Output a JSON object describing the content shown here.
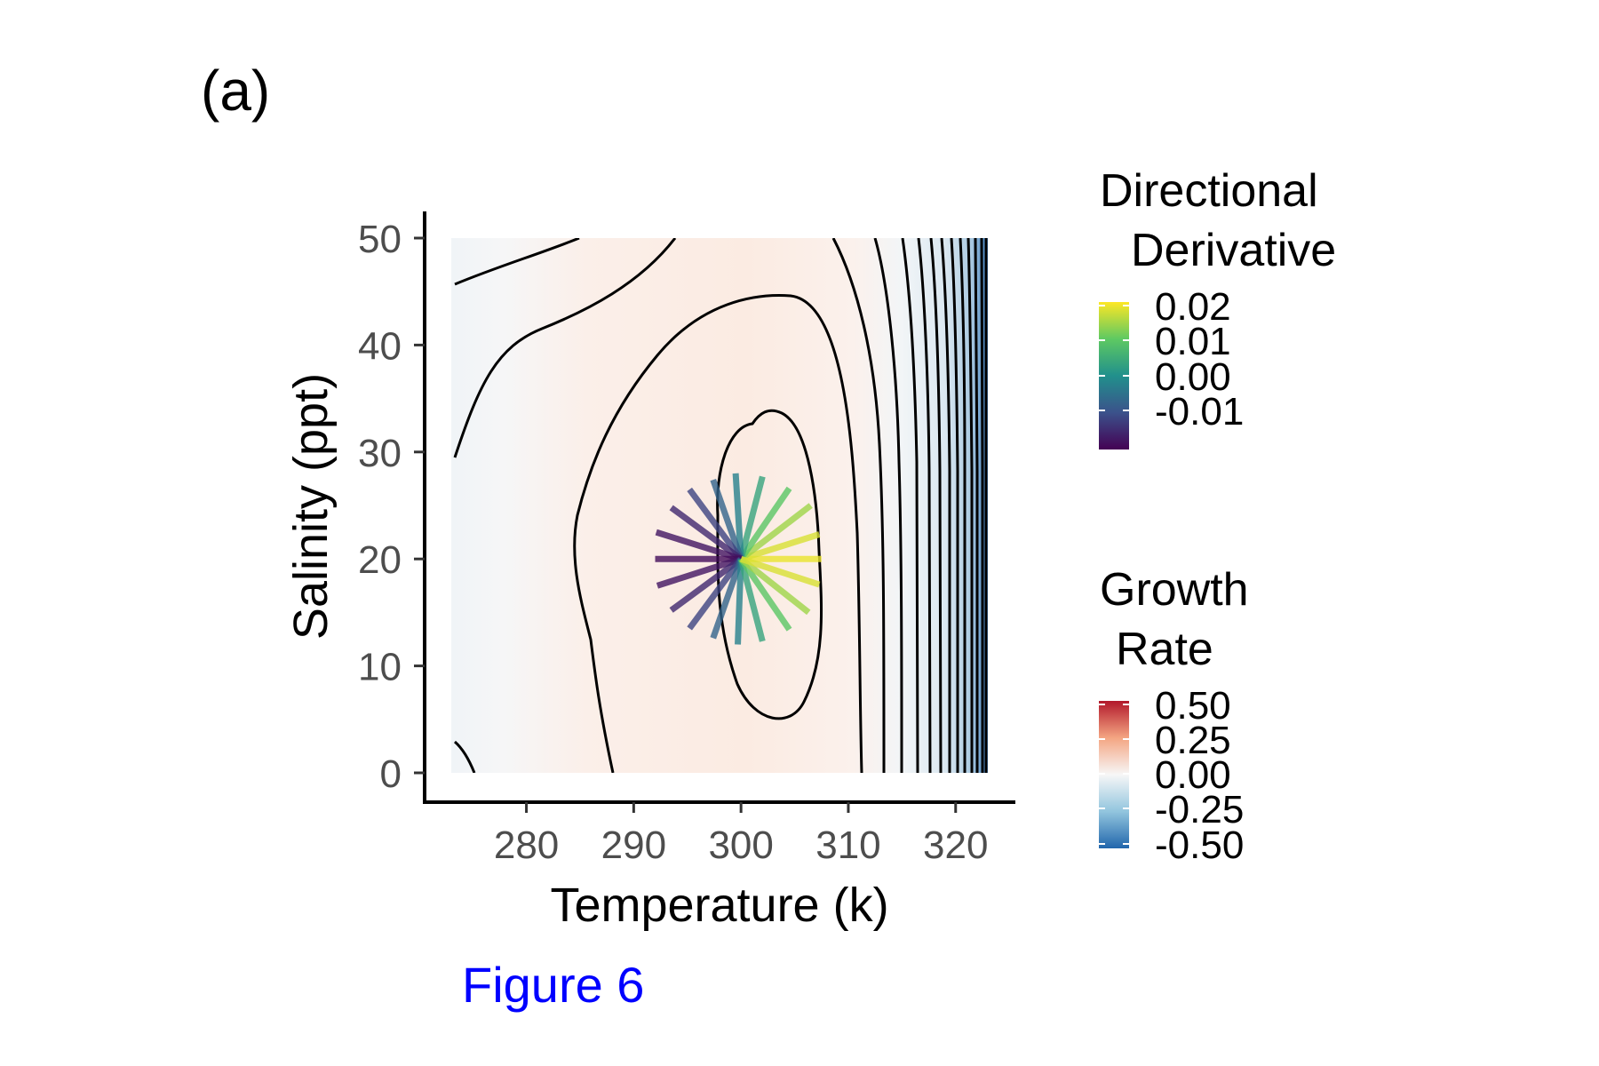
{
  "panel_label": "(a)",
  "caption": "Figure 6",
  "chart_data": {
    "type": "heatmap",
    "xlabel": "Temperature (k)",
    "ylabel": "Salinity (ppt)",
    "xlim": [
      273,
      323
    ],
    "ylim": [
      0,
      50
    ],
    "xticks": [
      280,
      290,
      300,
      310,
      320
    ],
    "yticks": [
      0,
      10,
      20,
      30,
      40,
      50
    ],
    "grid": false,
    "fill_variable": "Growth Rate",
    "contours": true,
    "optimum": {
      "temperature": 300,
      "salinity": 20
    },
    "directional_derivative_lines": {
      "origin": {
        "temperature": 300,
        "salinity": 20
      },
      "note_angles_deg_step": 15,
      "values": [
        {
          "angle": 0,
          "value": 0.02,
          "end": [
            307.5,
            20
          ]
        },
        {
          "angle": 15,
          "value": 0.019,
          "end": [
            307.3,
            22.3
          ]
        },
        {
          "angle": 30,
          "value": 0.016,
          "end": [
            306.5,
            25
          ]
        },
        {
          "angle": 45,
          "value": 0.012,
          "end": [
            304.5,
            26.6
          ]
        },
        {
          "angle": 60,
          "value": 0.007,
          "end": [
            302,
            27.7
          ]
        },
        {
          "angle": 75,
          "value": 0.002,
          "end": [
            299.5,
            28
          ]
        },
        {
          "angle": 90,
          "value": -0.002,
          "end": [
            297.4,
            27.4
          ]
        },
        {
          "angle": 105,
          "value": -0.006,
          "end": [
            295.2,
            26.5
          ]
        },
        {
          "angle": 120,
          "value": -0.009,
          "end": [
            293.5,
            24.8
          ]
        },
        {
          "angle": 135,
          "value": -0.011,
          "end": [
            292.1,
            22.5
          ]
        },
        {
          "angle": 150,
          "value": -0.012,
          "end": [
            292,
            20
          ]
        },
        {
          "angle": 165,
          "value": -0.011,
          "end": [
            292.2,
            17.5
          ]
        },
        {
          "angle": 180,
          "value": -0.009,
          "end": [
            293.5,
            15.2
          ]
        },
        {
          "angle": 195,
          "value": -0.006,
          "end": [
            295.2,
            13.5
          ]
        },
        {
          "angle": 210,
          "value": -0.002,
          "end": [
            297.4,
            12.6
          ]
        },
        {
          "angle": 225,
          "value": 0.002,
          "end": [
            299.7,
            12
          ]
        },
        {
          "angle": 240,
          "value": 0.007,
          "end": [
            302,
            12.3
          ]
        },
        {
          "angle": 255,
          "value": 0.012,
          "end": [
            304.5,
            13.4
          ]
        },
        {
          "angle": 270,
          "value": 0.016,
          "end": [
            306.3,
            15
          ]
        },
        {
          "angle": 285,
          "value": 0.019,
          "end": [
            307.3,
            17.6
          ]
        }
      ]
    },
    "legends": [
      {
        "title_lines": [
          "Directional",
          "Derivative"
        ],
        "labels": [
          "0.02",
          "0.01",
          "0.00",
          "-0.01"
        ],
        "colormap": "viridis",
        "range": [
          -0.013,
          0.021
        ]
      },
      {
        "title_lines": [
          "Growth",
          "Rate"
        ],
        "labels": [
          "0.50",
          "0.25",
          "0.00",
          "-0.25",
          "-0.50"
        ],
        "colormap": "diverging red-white-blue",
        "range": [
          -0.5,
          0.5
        ]
      }
    ],
    "legend_placement": "right"
  }
}
